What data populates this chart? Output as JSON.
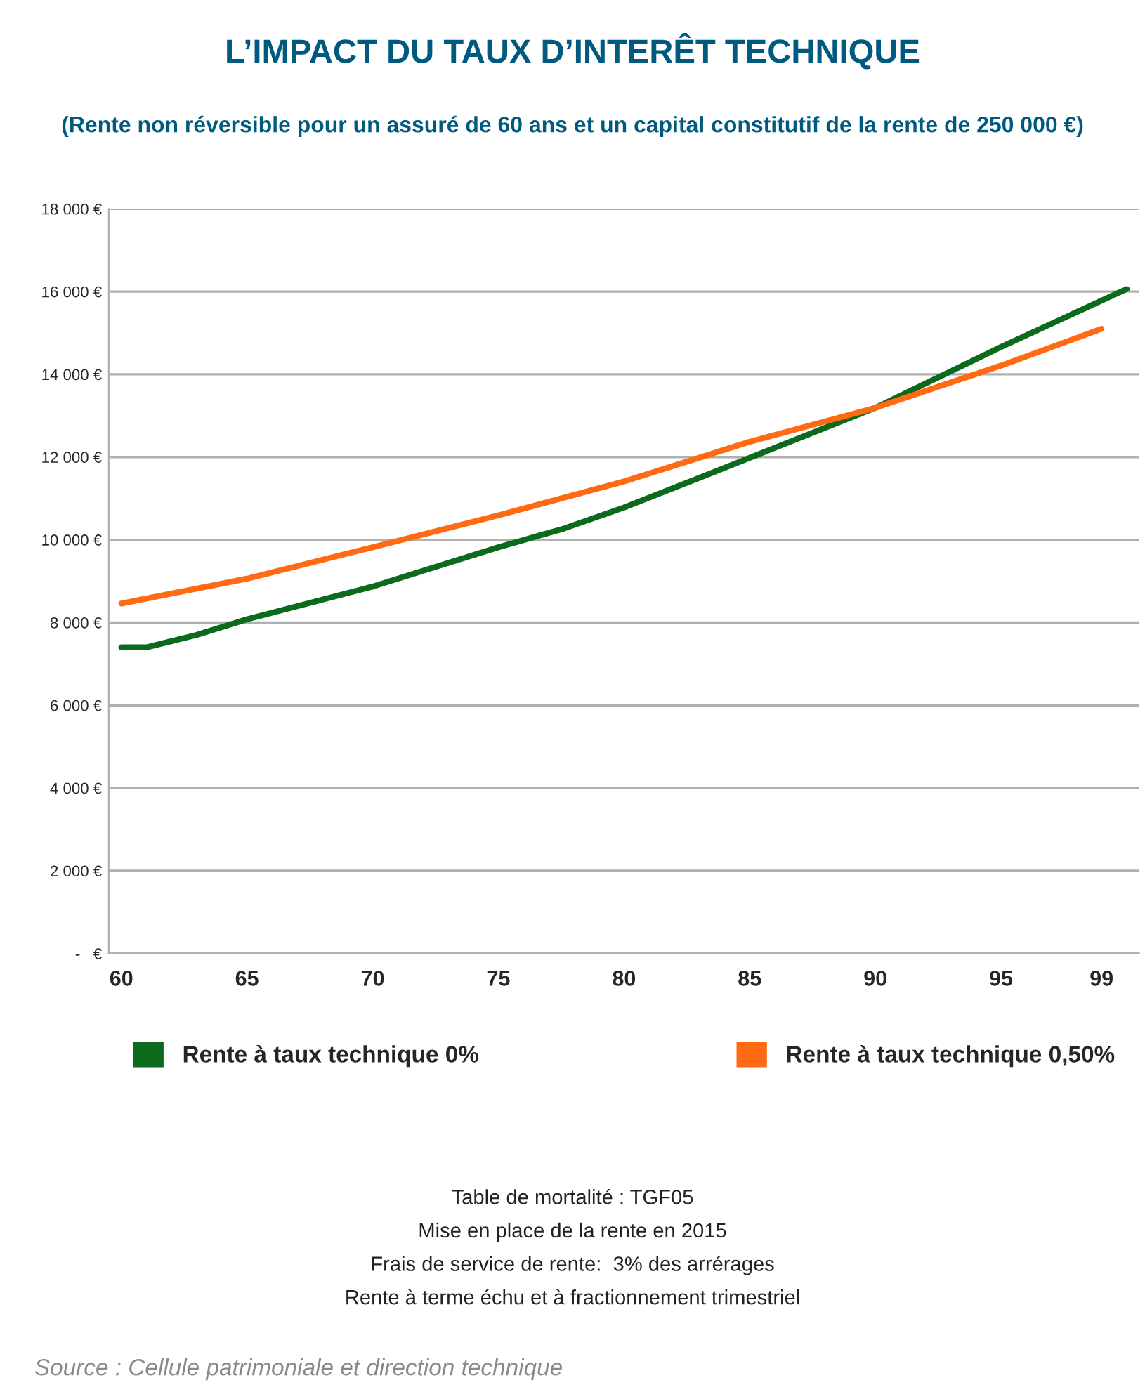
{
  "chart_data": {
    "type": "line",
    "title": "L’IMPACT DU TAUX D’INTERÊT TECHNIQUE",
    "subtitle": "(Rente non réversible pour un assuré de 60 ans et un capital constitutif de la rente de 250 000 €)",
    "series": [
      {
        "name": "Rente à taux technique 0%",
        "color": "#0b6a1c",
        "x": [
          60,
          61,
          62,
          63,
          65,
          70,
          75,
          77.6,
          80,
          85,
          90,
          95,
          100
        ],
        "values": [
          7400,
          7400,
          7550,
          7700,
          8080,
          8870,
          9820,
          10270,
          10780,
          11980,
          13190,
          14660,
          16060
        ]
      },
      {
        "name": "Rente à taux technique 0,50%",
        "color": "#ff6a13",
        "x": [
          60,
          65,
          70,
          75,
          80,
          85,
          90,
          95,
          99
        ],
        "values": [
          8460,
          9060,
          9820,
          10590,
          11410,
          12370,
          13190,
          14210,
          15100
        ]
      }
    ],
    "xlim": [
      59.5,
      100.5
    ],
    "xticks": [
      60,
      65,
      70,
      75,
      80,
      85,
      90,
      95,
      99
    ],
    "ylim": [
      0,
      18000
    ],
    "yticks": [
      {
        "value": 0,
        "label": "-   €"
      },
      {
        "value": 2000,
        "label": "2 000 €"
      },
      {
        "value": 4000,
        "label": "4 000 €"
      },
      {
        "value": 6000,
        "label": "6 000 €"
      },
      {
        "value": 8000,
        "label": "8 000 €"
      },
      {
        "value": 10000,
        "label": "10 000 €"
      },
      {
        "value": 12000,
        "label": "12 000 €"
      },
      {
        "value": 14000,
        "label": "14 000 €"
      },
      {
        "value": 16000,
        "label": "16 000 €"
      },
      {
        "value": 18000,
        "label": "18 000 €"
      }
    ],
    "grid": "y",
    "legend": "bottom",
    "line_style": "solid",
    "marker": "none",
    "annotations": [
      "Table de mortalité : TGF05",
      "Mise en place de la rente en 2015",
      "Frais de service de rente:  3% des arrérages",
      "Rente à terme échu et à fractionnement trimestriel",
      "Source : Cellule patrimoniale et direction technique"
    ]
  }
}
